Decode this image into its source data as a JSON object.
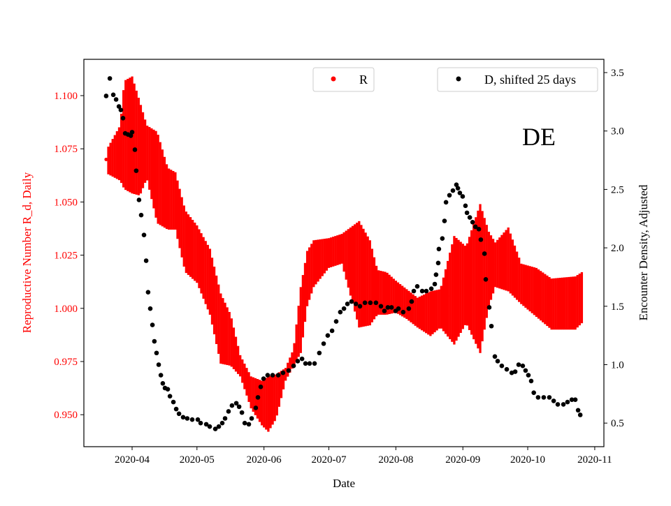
{
  "chart_data": {
    "type": "scatter",
    "annotation": "DE",
    "xlabel": "Date",
    "ylabel_left": "Reproductive Number R_d, Daily",
    "ylabel_right": "Encounter Density, Adjusted",
    "x_origin": "2020-04-01",
    "x_unit": "days since x_origin",
    "x_ticks": [
      {
        "label": "2020-04",
        "day": 0
      },
      {
        "label": "2020-05",
        "day": 30
      },
      {
        "label": "2020-06",
        "day": 61
      },
      {
        "label": "2020-07",
        "day": 91
      },
      {
        "label": "2020-08",
        "day": 122
      },
      {
        "label": "2020-09",
        "day": 153
      },
      {
        "label": "2020-10",
        "day": 183
      },
      {
        "label": "2020-11",
        "day": 214
      }
    ],
    "ylim_left": [
      0.93,
      1.115
    ],
    "yticks_left": [
      "0.950",
      "0.975",
      "1.000",
      "1.025",
      "1.050",
      "1.075",
      "1.100"
    ],
    "ylim_right": [
      0.33,
      3.62
    ],
    "yticks_right": [
      "0.5",
      "1.0",
      "1.5",
      "2.0",
      "2.5",
      "3.0",
      "3.5"
    ],
    "legend": [
      {
        "label": "R",
        "color": "#ff0000",
        "position": "top-center"
      },
      {
        "label": "D, shifted 25 days",
        "color": "#000000",
        "position": "top-right"
      }
    ],
    "colors": {
      "R": "#ff0000",
      "D": "#000000",
      "left_axis": "#ff0000"
    },
    "R_start": {
      "day": -12,
      "value": 1.07
    },
    "R_band": [
      [
        -11,
        1.063,
        1.076
      ],
      [
        -5.5,
        1.06,
        1.086
      ],
      [
        -3.6,
        1.056,
        1.107
      ],
      [
        0,
        1.054,
        1.109
      ],
      [
        3.6,
        1.053,
        1.097
      ],
      [
        6.8,
        1.061,
        1.086
      ],
      [
        11.6,
        1.04,
        1.083
      ],
      [
        16.5,
        1.037,
        1.066
      ],
      [
        20,
        1.037,
        1.064
      ],
      [
        24.6,
        1.017,
        1.046
      ],
      [
        30,
        1.012,
        1.039
      ],
      [
        36,
        0.997,
        1.028
      ],
      [
        41,
        0.974,
        1.007
      ],
      [
        45.6,
        0.973,
        0.997
      ],
      [
        50,
        0.968,
        0.978
      ],
      [
        55,
        0.953,
        0.968
      ],
      [
        60,
        0.945,
        0.966
      ],
      [
        63,
        0.942,
        0.968
      ],
      [
        66.6,
        0.948,
        0.969
      ],
      [
        71,
        0.966,
        0.972
      ],
      [
        74.7,
        0.973,
        0.981
      ],
      [
        78,
        0.979,
        1.01
      ],
      [
        81,
        1.001,
        1.027
      ],
      [
        84,
        1.01,
        1.032
      ],
      [
        91,
        1.019,
        1.033
      ],
      [
        97,
        1.021,
        1.035
      ],
      [
        105,
        0.991,
        1.041
      ],
      [
        110,
        0.992,
        1.032
      ],
      [
        113.5,
        0.997,
        1.018
      ],
      [
        117.7,
        0.997,
        1.017
      ],
      [
        122,
        0.998,
        1.013
      ],
      [
        127,
        0.995,
        1.009
      ],
      [
        132,
        0.991,
        1.005
      ],
      [
        138,
        0.987,
        1.008
      ],
      [
        142.6,
        0.991,
        1.009
      ],
      [
        149,
        0.983,
        1.034
      ],
      [
        154.5,
        0.993,
        1.029
      ],
      [
        161,
        0.979,
        1.049
      ],
      [
        165,
        1.001,
        1.036
      ],
      [
        168,
        1.01,
        1.031
      ],
      [
        174,
        1.008,
        1.038
      ],
      [
        180,
        1.002,
        1.021
      ],
      [
        187,
        0.996,
        1.019
      ],
      [
        194,
        0.99,
        1.014
      ],
      [
        205,
        0.99,
        1.015
      ],
      [
        208,
        0.993,
        1.017
      ]
    ],
    "D_points": [
      [
        -12,
        3.3
      ],
      [
        -10.3,
        3.45
      ],
      [
        -8.7,
        3.31
      ],
      [
        -7.4,
        3.27
      ],
      [
        -6.1,
        3.21
      ],
      [
        -5.2,
        3.18
      ],
      [
        -4.2,
        3.11
      ],
      [
        -3.2,
        2.98
      ],
      [
        -1.9,
        2.97
      ],
      [
        -0.6,
        2.96
      ],
      [
        0,
        2.99
      ],
      [
        1.3,
        2.84
      ],
      [
        1.9,
        2.66
      ],
      [
        3.2,
        2.41
      ],
      [
        4.2,
        2.28
      ],
      [
        5.5,
        2.11
      ],
      [
        6.5,
        1.89
      ],
      [
        7.4,
        1.62
      ],
      [
        8.4,
        1.48
      ],
      [
        9.4,
        1.34
      ],
      [
        10.3,
        1.2
      ],
      [
        11.3,
        1.1
      ],
      [
        12.3,
        1.0
      ],
      [
        13.3,
        0.91
      ],
      [
        14.2,
        0.84
      ],
      [
        15.2,
        0.8
      ],
      [
        16.5,
        0.79
      ],
      [
        17.5,
        0.73
      ],
      [
        19.1,
        0.68
      ],
      [
        20.4,
        0.62
      ],
      [
        21.7,
        0.58
      ],
      [
        23.6,
        0.55
      ],
      [
        25.5,
        0.54
      ],
      [
        27.8,
        0.53
      ],
      [
        30.4,
        0.53
      ],
      [
        31.7,
        0.5
      ],
      [
        34.3,
        0.49
      ],
      [
        35.9,
        0.47
      ],
      [
        38.5,
        0.45
      ],
      [
        40.1,
        0.47
      ],
      [
        41.7,
        0.5
      ],
      [
        43,
        0.54
      ],
      [
        44.6,
        0.6
      ],
      [
        46.2,
        0.65
      ],
      [
        48.2,
        0.67
      ],
      [
        49.5,
        0.64
      ],
      [
        50.8,
        0.59
      ],
      [
        52.1,
        0.5
      ],
      [
        54,
        0.49
      ],
      [
        55.3,
        0.54
      ],
      [
        57.2,
        0.63
      ],
      [
        58.2,
        0.72
      ],
      [
        59.5,
        0.81
      ],
      [
        60.8,
        0.88
      ],
      [
        62.7,
        0.91
      ],
      [
        65,
        0.91
      ],
      [
        67.6,
        0.91
      ],
      [
        69.8,
        0.93
      ],
      [
        72.4,
        0.95
      ],
      [
        74.7,
        0.99
      ],
      [
        76.6,
        1.03
      ],
      [
        78.6,
        1.05
      ],
      [
        80.2,
        1.01
      ],
      [
        82.1,
        1.01
      ],
      [
        84.4,
        1.01
      ],
      [
        86.6,
        1.1
      ],
      [
        88.6,
        1.18
      ],
      [
        90.5,
        1.25
      ],
      [
        92.5,
        1.29
      ],
      [
        94.4,
        1.37
      ],
      [
        96.3,
        1.45
      ],
      [
        98,
        1.48
      ],
      [
        99.6,
        1.52
      ],
      [
        101.5,
        1.54
      ],
      [
        103.5,
        1.52
      ],
      [
        105.4,
        1.5
      ],
      [
        107.7,
        1.53
      ],
      [
        110.2,
        1.53
      ],
      [
        112.8,
        1.53
      ],
      [
        115.1,
        1.5
      ],
      [
        116.7,
        1.46
      ],
      [
        118.3,
        1.49
      ],
      [
        120,
        1.49
      ],
      [
        121.9,
        1.46
      ],
      [
        123.2,
        1.48
      ],
      [
        125.4,
        1.45
      ],
      [
        128,
        1.48
      ],
      [
        129.3,
        1.54
      ],
      [
        130.3,
        1.63
      ],
      [
        131.9,
        1.67
      ],
      [
        134.2,
        1.63
      ],
      [
        136.1,
        1.63
      ],
      [
        138.4,
        1.65
      ],
      [
        140,
        1.69
      ],
      [
        140.6,
        1.77
      ],
      [
        141.6,
        1.87
      ],
      [
        141.9,
        1.99
      ],
      [
        143.5,
        2.08
      ],
      [
        144.5,
        2.23
      ],
      [
        145.2,
        2.39
      ],
      [
        146.8,
        2.45
      ],
      [
        148.4,
        2.49
      ],
      [
        150,
        2.54
      ],
      [
        150.7,
        2.51
      ],
      [
        151.6,
        2.47
      ],
      [
        152.9,
        2.44
      ],
      [
        154.2,
        2.36
      ],
      [
        154.9,
        2.3
      ],
      [
        156.2,
        2.26
      ],
      [
        157.5,
        2.22
      ],
      [
        158.8,
        2.18
      ],
      [
        160.4,
        2.16
      ],
      [
        161.3,
        2.07
      ],
      [
        163,
        1.95
      ],
      [
        163.6,
        1.73
      ],
      [
        165.2,
        1.49
      ],
      [
        166.2,
        1.33
      ],
      [
        167.8,
        1.07
      ],
      [
        169.1,
        1.03
      ],
      [
        171,
        0.99
      ],
      [
        173.3,
        0.96
      ],
      [
        175.6,
        0.93
      ],
      [
        177.2,
        0.94
      ],
      [
        178.8,
        1.0
      ],
      [
        180.7,
        0.99
      ],
      [
        182,
        0.95
      ],
      [
        183.3,
        0.91
      ],
      [
        184.6,
        0.86
      ],
      [
        185.8,
        0.76
      ],
      [
        187.8,
        0.72
      ],
      [
        190.4,
        0.72
      ],
      [
        193,
        0.72
      ],
      [
        195,
        0.69
      ],
      [
        196.9,
        0.66
      ],
      [
        199.5,
        0.66
      ],
      [
        201.4,
        0.68
      ],
      [
        203.4,
        0.7
      ],
      [
        205,
        0.7
      ],
      [
        206.3,
        0.61
      ],
      [
        207.3,
        0.57
      ]
    ]
  }
}
